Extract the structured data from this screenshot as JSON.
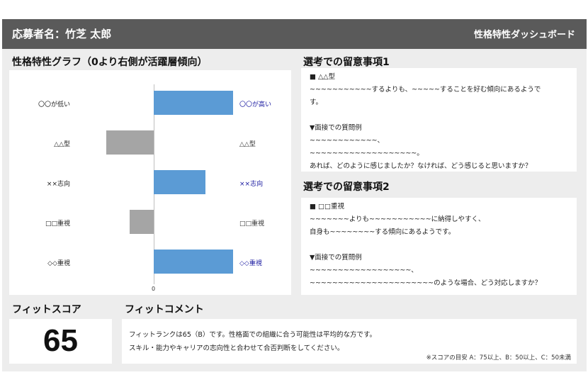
{
  "header": {
    "applicant": "応募者名：竹芝 太郎",
    "dashboard_title": "性格特性ダッシュボード"
  },
  "graph": {
    "title": "性格特性グラフ（0より右側が活躍層傾向）",
    "zero_label": "0"
  },
  "chart_data": {
    "type": "bar",
    "orientation": "horizontal",
    "title": "性格特性グラフ（0より右側が活躍層傾向）",
    "categories_left": [
      "〇〇が低い",
      "△△型",
      "××志向",
      "□□重視",
      "◇◇重視"
    ],
    "categories_right": [
      "〇〇が高い",
      "△△型",
      "××志向",
      "□□重視",
      "◇◇重視"
    ],
    "values": [
      1.0,
      -0.6,
      0.65,
      -0.3,
      1.0
    ],
    "xlim": [
      -1.8,
      1.0
    ],
    "colors": {
      "positive": "#5b9bd5",
      "negative": "#a5a5a5"
    },
    "grid": false
  },
  "note1": {
    "title": "選考での留意事項1",
    "lines": [
      "■ △△型",
      "~~~~~~~~~~~するよりも、~~~~~することを好む傾向にあるようで",
      "す。",
      "",
      "▼面接での質問例",
      "~~~~~~~~~~~~、",
      "~~~~~~~~~~~~~~~~~~~。",
      "あれば、どのように感じましたか？なければ、どう感じると思いますか？"
    ]
  },
  "note2": {
    "title": "選考での留意事項2",
    "lines": [
      "■ □□重視",
      "~~~~~~~よりも~~~~~~~~~~~に納得しやすく、",
      "自身も~~~~~~~~する傾向にあるようです。",
      "",
      "▼面接での質問例",
      "~~~~~~~~~~~~~~~~~~、",
      "~~~~~~~~~~~~~~~~~~~~~~のような場合、どう対応しますか？"
    ]
  },
  "fit_score": {
    "title": "フィットスコア",
    "value": "65"
  },
  "fit_comment": {
    "title": "フィットコメント",
    "line1": "フィットランクは65（B）です。性格面での組織に合う可能性は平均的な方です。",
    "line2": "スキル・能力やキャリアの志向性と合わせて合否判断をしてください。",
    "footnote": "※スコアの目安 A：75以上、B：50以上、C：50未満"
  }
}
